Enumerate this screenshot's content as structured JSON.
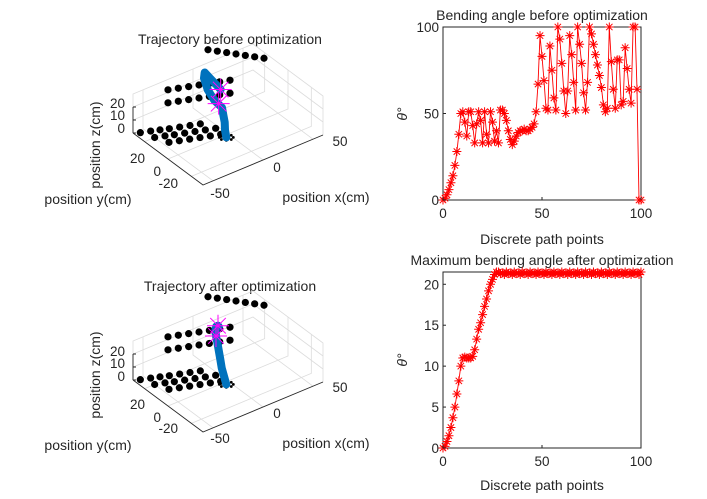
{
  "figure": {
    "background": "#ffffff",
    "colors": {
      "series_marker": "#ff0000",
      "trajectory": "#0072bd",
      "target_marker": "#ff00ff",
      "obstacle": "#000000",
      "axis": "#262626",
      "grid": "#dcdcdc"
    }
  },
  "chart_data": [
    {
      "id": "traj-before",
      "type": "scatter3d",
      "title": "Trajectory before optimization",
      "xlabel": "position x(cm)",
      "ylabel": "position y(cm)",
      "zlabel": "position z(cm)",
      "xticks": [
        "-50",
        "0",
        "50"
      ],
      "yticks": [
        "-20",
        "0",
        "20"
      ],
      "zticks": [
        "0",
        "10",
        "20"
      ],
      "xlim": [
        -60,
        60
      ],
      "ylim": [
        -30,
        30
      ],
      "zlim": [
        0,
        20
      ],
      "grid": true,
      "obstacles_floor": [
        [
          -55,
          28
        ],
        [
          -47,
          26
        ],
        [
          -40,
          24
        ],
        [
          -33,
          22
        ],
        [
          -25,
          20
        ],
        [
          -17,
          18
        ],
        [
          -9,
          16
        ],
        [
          -50,
          20
        ],
        [
          -42,
          18
        ],
        [
          -35,
          16
        ],
        [
          -27,
          14
        ],
        [
          -19,
          12
        ],
        [
          -11,
          10
        ],
        [
          -3,
          8
        ],
        [
          -45,
          12
        ],
        [
          -37,
          10
        ],
        [
          -29,
          8
        ],
        [
          -21,
          6
        ],
        [
          -13,
          4
        ],
        [
          -5,
          2
        ]
      ],
      "obstacles_back": [
        [
          -25,
          30,
          22
        ],
        [
          -17,
          28,
          22
        ],
        [
          -9,
          26,
          22
        ],
        [
          -1,
          24,
          22
        ],
        [
          7,
          22,
          22
        ],
        [
          15,
          20,
          22
        ],
        [
          23,
          18,
          22
        ],
        [
          -25,
          30,
          12
        ],
        [
          -17,
          28,
          12
        ],
        [
          -9,
          26,
          12
        ],
        [
          -1,
          24,
          12
        ],
        [
          7,
          22,
          12
        ],
        [
          15,
          20,
          12
        ],
        [
          23,
          18,
          12
        ],
        [
          15,
          30,
          40
        ],
        [
          22,
          28,
          38
        ],
        [
          29,
          26,
          36
        ],
        [
          36,
          24,
          34
        ],
        [
          43,
          22,
          32
        ],
        [
          50,
          20,
          30
        ],
        [
          57,
          18,
          28
        ]
      ],
      "trajectory": [
        [
          -4,
          -2,
          0
        ],
        [
          -3,
          0,
          4
        ],
        [
          -1,
          2,
          8
        ],
        [
          0,
          4,
          12
        ],
        [
          1,
          6,
          16
        ],
        [
          -2,
          10,
          20
        ],
        [
          -4,
          14,
          26
        ],
        [
          -3,
          18,
          32
        ],
        [
          0,
          20,
          34
        ],
        [
          3,
          18,
          30
        ],
        [
          6,
          16,
          26
        ],
        [
          9,
          14,
          22
        ]
      ],
      "targets": [
        [
          0,
          8,
          18
        ],
        [
          9,
          14,
          22
        ]
      ],
      "base_ring": true
    },
    {
      "id": "angle-before",
      "type": "line",
      "title": "Bending angle before optimization",
      "xlabel": "Discrete path points",
      "ylabel": "θ°",
      "xlim": [
        0,
        100
      ],
      "ylim": [
        0,
        100
      ],
      "xticks": [
        "0",
        "50",
        "100"
      ],
      "yticks": [
        "0",
        "50",
        "100"
      ],
      "marker": "*",
      "x": [
        0,
        1,
        2,
        3,
        4,
        5,
        6,
        7,
        8,
        9,
        10,
        11,
        12,
        13,
        14,
        15,
        16,
        17,
        18,
        19,
        20,
        21,
        22,
        23,
        24,
        25,
        26,
        27,
        28,
        29,
        30,
        31,
        32,
        33,
        34,
        35,
        36,
        37,
        38,
        39,
        40,
        41,
        42,
        43,
        44,
        45,
        46,
        47,
        48,
        49,
        50,
        51,
        52,
        53,
        54,
        55,
        56,
        57,
        58,
        59,
        60,
        61,
        62,
        63,
        64,
        65,
        66,
        67,
        68,
        69,
        70,
        71,
        72,
        73,
        74,
        75,
        76,
        77,
        78,
        79,
        80,
        81,
        82,
        83,
        84,
        85,
        86,
        87,
        88,
        89,
        90,
        91,
        92,
        93,
        94,
        95,
        96,
        97,
        98,
        99,
        100
      ],
      "values": [
        0,
        1,
        3,
        6,
        10,
        14,
        20,
        28,
        38,
        50,
        51,
        45,
        37,
        51,
        51,
        43,
        33,
        44,
        51,
        46,
        33,
        51,
        38,
        33,
        51,
        45,
        34,
        40,
        33,
        52,
        52,
        50,
        46,
        40,
        35,
        32,
        34,
        37,
        39,
        40,
        40,
        41,
        40,
        40,
        41,
        42,
        44,
        51,
        67,
        95,
        83,
        69,
        53,
        52,
        89,
        75,
        59,
        52,
        100,
        93,
        79,
        63,
        50,
        63,
        95,
        84,
        68,
        52,
        100,
        90,
        79,
        62,
        52,
        68,
        100,
        96,
        90,
        84,
        78,
        72,
        65,
        55,
        51,
        53,
        100,
        80,
        64,
        53,
        81,
        81,
        55,
        57,
        88,
        76,
        64,
        56,
        100,
        100,
        64,
        0,
        0
      ]
    },
    {
      "id": "traj-after",
      "type": "scatter3d",
      "title": "Trajectory after optimization",
      "xlabel": "position x(cm)",
      "ylabel": "position y(cm)",
      "zlabel": "position z(cm)",
      "xticks": [
        "-50",
        "0",
        "50"
      ],
      "yticks": [
        "-20",
        "0",
        "20"
      ],
      "zticks": [
        "0",
        "10",
        "20"
      ],
      "xlim": [
        -60,
        60
      ],
      "ylim": [
        -30,
        30
      ],
      "zlim": [
        0,
        20
      ],
      "grid": true,
      "obstacles_floor": [
        [
          -55,
          28
        ],
        [
          -47,
          26
        ],
        [
          -40,
          24
        ],
        [
          -33,
          22
        ],
        [
          -25,
          20
        ],
        [
          -17,
          18
        ],
        [
          -9,
          16
        ],
        [
          -50,
          20
        ],
        [
          -42,
          18
        ],
        [
          -35,
          16
        ],
        [
          -27,
          14
        ],
        [
          -19,
          12
        ],
        [
          -11,
          10
        ],
        [
          -3,
          8
        ],
        [
          -45,
          12
        ],
        [
          -37,
          10
        ],
        [
          -29,
          8
        ],
        [
          -21,
          6
        ],
        [
          -13,
          4
        ],
        [
          -5,
          2
        ]
      ],
      "obstacles_back": [
        [
          -25,
          30,
          22
        ],
        [
          -17,
          28,
          22
        ],
        [
          -9,
          26,
          22
        ],
        [
          -1,
          24,
          22
        ],
        [
          7,
          22,
          22
        ],
        [
          15,
          20,
          22
        ],
        [
          23,
          18,
          22
        ],
        [
          -25,
          30,
          12
        ],
        [
          -17,
          28,
          12
        ],
        [
          -9,
          26,
          12
        ],
        [
          -1,
          24,
          12
        ],
        [
          7,
          22,
          12
        ],
        [
          15,
          20,
          12
        ],
        [
          23,
          18,
          12
        ],
        [
          15,
          30,
          40
        ],
        [
          22,
          28,
          38
        ],
        [
          29,
          26,
          36
        ],
        [
          36,
          24,
          34
        ],
        [
          43,
          22,
          32
        ],
        [
          50,
          20,
          30
        ],
        [
          57,
          18,
          28
        ]
      ],
      "trajectory": [
        [
          -4,
          -2,
          0
        ],
        [
          -4,
          0,
          5
        ],
        [
          -4,
          2,
          10
        ],
        [
          -3,
          4,
          15
        ],
        [
          -2,
          6,
          19
        ],
        [
          0,
          9,
          23
        ],
        [
          2,
          12,
          26
        ],
        [
          5,
          15,
          28
        ],
        [
          8,
          17,
          28
        ],
        [
          11,
          18,
          27
        ],
        [
          13,
          19,
          25
        ]
      ],
      "targets": [
        [
          2,
          12,
          26
        ],
        [
          11,
          18,
          27
        ]
      ],
      "base_ring": true
    },
    {
      "id": "angle-after",
      "type": "line",
      "title": "Maximum bending angle after optimization",
      "xlabel": "Discrete path points",
      "ylabel": "θ°",
      "xlim": [
        0,
        100
      ],
      "ylim": [
        0,
        21.5
      ],
      "xticks": [
        "0",
        "50",
        "100"
      ],
      "yticks": [
        "0",
        "5",
        "10",
        "15",
        "20"
      ],
      "marker": "*",
      "x": [
        0,
        1,
        2,
        3,
        4,
        5,
        6,
        7,
        8,
        9,
        10,
        11,
        12,
        13,
        14,
        15,
        16,
        17,
        18,
        19,
        20,
        21,
        22,
        23,
        24,
        25,
        26,
        27,
        28,
        29,
        30,
        31,
        32,
        33,
        34,
        35,
        36,
        37,
        38,
        39,
        40,
        41,
        42,
        43,
        44,
        45,
        46,
        47,
        48,
        49,
        50,
        51,
        52,
        53,
        54,
        55,
        56,
        57,
        58,
        59,
        60,
        61,
        62,
        63,
        64,
        65,
        66,
        67,
        68,
        69,
        70,
        71,
        72,
        73,
        74,
        75,
        76,
        77,
        78,
        79,
        80,
        81,
        82,
        83,
        84,
        85,
        86,
        87,
        88,
        89,
        90,
        91,
        92,
        93,
        94,
        95,
        96,
        97,
        98,
        99,
        100
      ],
      "values": [
        0,
        0.2,
        0.8,
        1.5,
        2.5,
        3.7,
        5,
        6.6,
        8.2,
        10,
        11,
        11.1,
        11,
        11,
        11,
        11.2,
        12,
        13.3,
        14.5,
        15.3,
        16.3,
        17.3,
        18.2,
        19.2,
        20,
        20.6,
        21.2,
        21.5,
        21.5,
        21.3,
        21.4,
        21.2,
        21.5,
        21.3,
        21.4,
        21.2,
        21.5,
        21.3,
        21.4,
        21.2,
        21.5,
        21.3,
        21.4,
        21.2,
        21.5,
        21.3,
        21.4,
        21.2,
        21.5,
        21.3,
        21.4,
        21.2,
        21.5,
        21.3,
        21.4,
        21.2,
        21.5,
        21.3,
        21.4,
        21.2,
        21.5,
        21.3,
        21.4,
        21.2,
        21.5,
        21.3,
        21.4,
        21.2,
        21.5,
        21.3,
        21.4,
        21.2,
        21.5,
        21.3,
        21.4,
        21.2,
        21.5,
        21.3,
        21.4,
        21.2,
        21.5,
        21.3,
        21.4,
        21.2,
        21.5,
        21.3,
        21.4,
        21.2,
        21.5,
        21.3,
        21.4,
        21.2,
        21.5,
        21.3,
        21.4,
        21.2,
        21.5,
        21.3,
        21.4,
        21.2,
        21.5
      ]
    }
  ]
}
